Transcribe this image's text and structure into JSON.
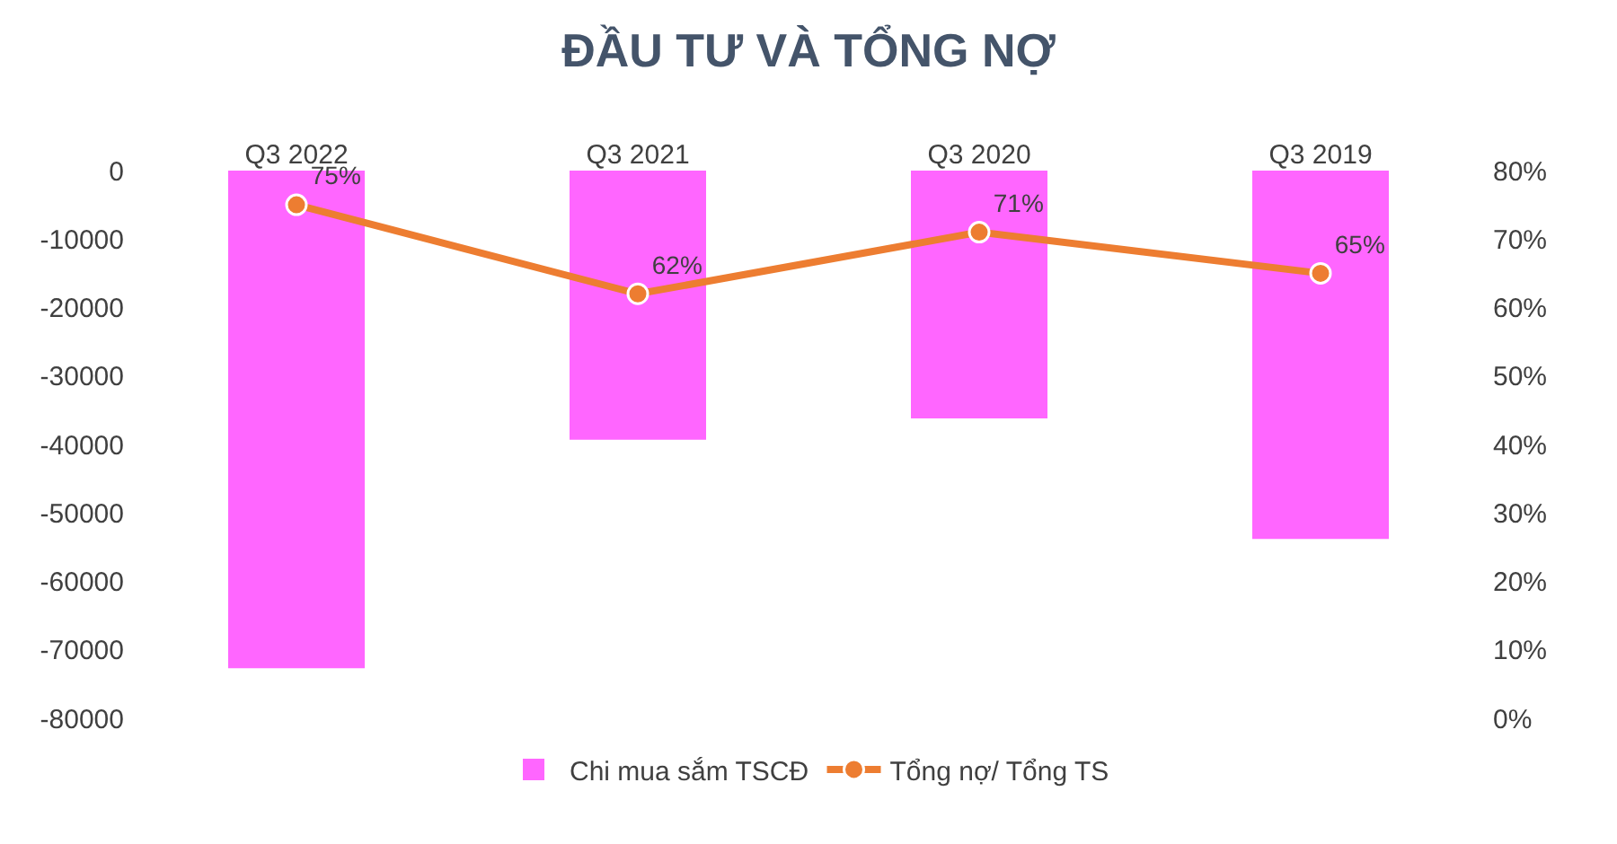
{
  "chart_data": {
    "type": "bar",
    "title": "ĐẦU TƯ VÀ TỔNG NỢ",
    "categories": [
      "Q3 2022",
      "Q3 2021",
      "Q3 2020",
      "Q3 2019"
    ],
    "series": [
      {
        "name": "Chi mua sắm TSCĐ",
        "color": "#ff66ff",
        "values": [
          -72700,
          -39300,
          -36200,
          -53800
        ]
      },
      {
        "name": "Tổng nợ/ Tổng TS",
        "type": "line",
        "axis": "y2",
        "color": "#ed7d31",
        "marker": "circle",
        "values": [
          75,
          62,
          71,
          65
        ],
        "value_labels": [
          "75%",
          "62%",
          "71%",
          "65%"
        ]
      }
    ],
    "ylim": [
      -80000,
      0
    ],
    "yticks": [
      0,
      -10000,
      -20000,
      -30000,
      -40000,
      -50000,
      -60000,
      -70000,
      -80000
    ],
    "y2lim": [
      0,
      80
    ],
    "y2ticks": [
      {
        "value": 0,
        "label": "0%"
      },
      {
        "value": 10,
        "label": "10%"
      },
      {
        "value": 20,
        "label": "20%"
      },
      {
        "value": 30,
        "label": "30%"
      },
      {
        "value": 40,
        "label": "40%"
      },
      {
        "value": 50,
        "label": "50%"
      },
      {
        "value": 60,
        "label": "60%"
      },
      {
        "value": 70,
        "label": "70%"
      },
      {
        "value": 80,
        "label": "80%"
      }
    ],
    "grid": false,
    "legend": "bottom"
  }
}
